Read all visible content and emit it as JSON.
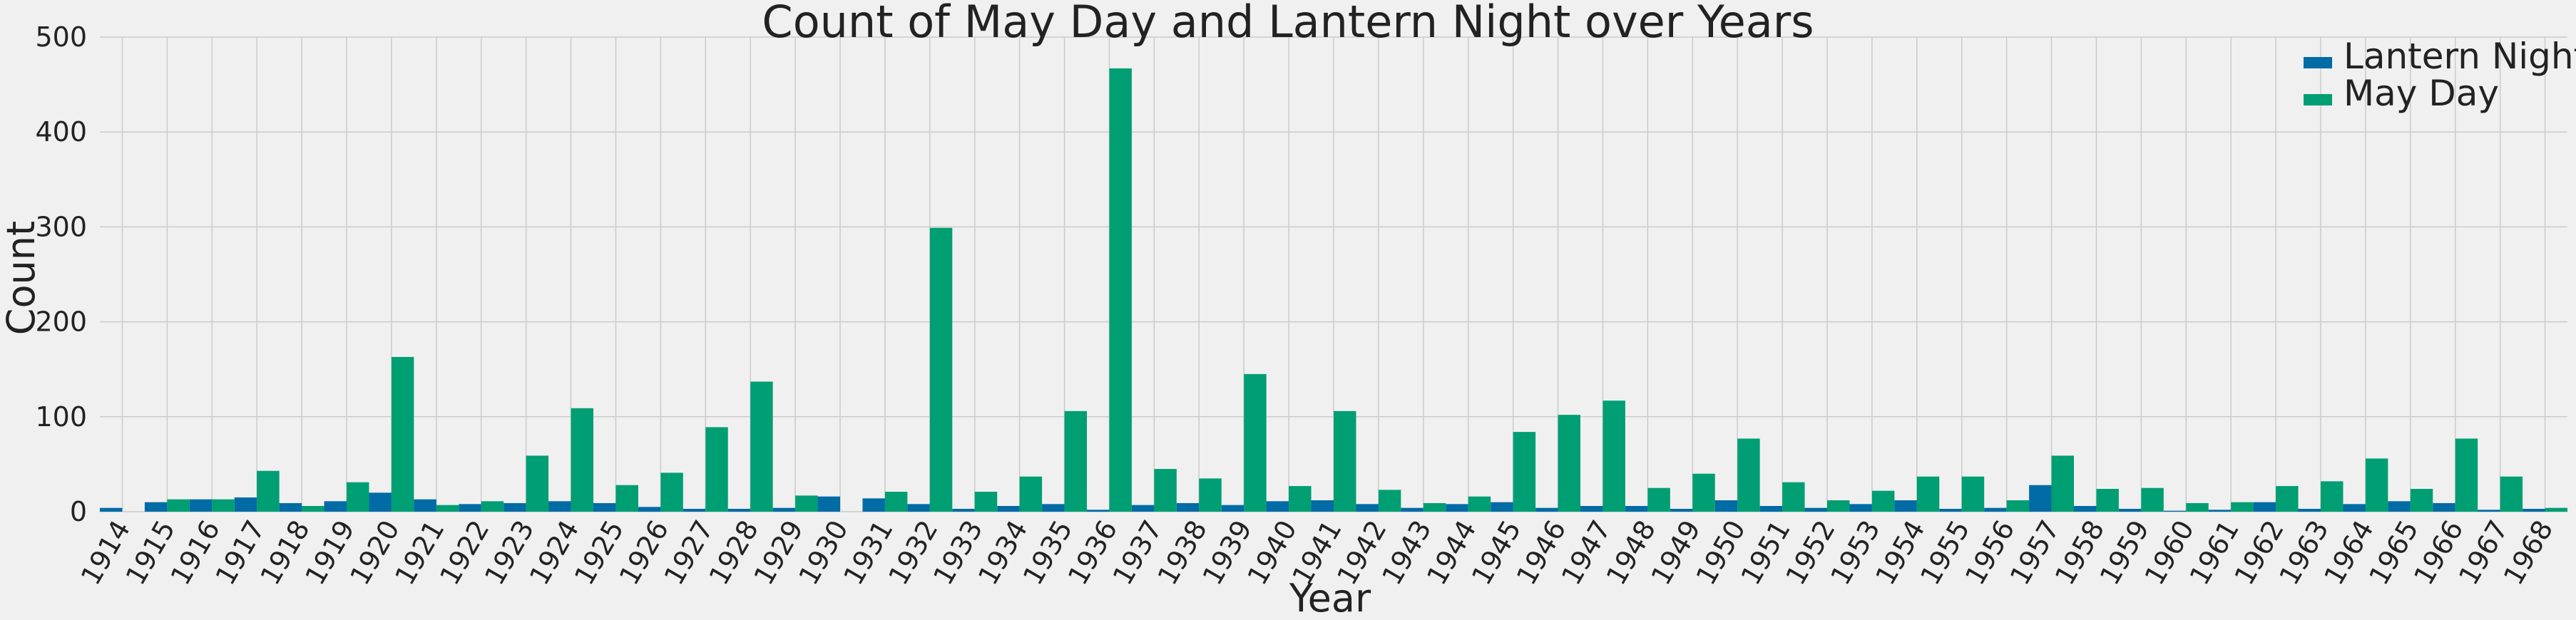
{
  "chart_data": {
    "type": "bar",
    "title": "Count of May Day and Lantern Night over Years",
    "xlabel": "Year",
    "ylabel": "Count",
    "ylim": [
      0,
      500
    ],
    "yticks": [
      0,
      100,
      200,
      300,
      400,
      500
    ],
    "grid": true,
    "legend_position": "top-right",
    "categories": [
      "1914",
      "1915",
      "1916",
      "1917",
      "1918",
      "1919",
      "1920",
      "1921",
      "1922",
      "1923",
      "1924",
      "1925",
      "1926",
      "1927",
      "1928",
      "1929",
      "1930",
      "1931",
      "1932",
      "1933",
      "1934",
      "1935",
      "1936",
      "1937",
      "1938",
      "1939",
      "1940",
      "1941",
      "1942",
      "1943",
      "1944",
      "1945",
      "1946",
      "1947",
      "1948",
      "1949",
      "1950",
      "1951",
      "1952",
      "1953",
      "1954",
      "1955",
      "1956",
      "1957",
      "1958",
      "1959",
      "1960",
      "1961",
      "1962",
      "1963",
      "1964",
      "1965",
      "1966",
      "1967",
      "1968"
    ],
    "series": [
      {
        "name": "Lantern Night",
        "color": "#006ba4",
        "values": [
          4,
          10,
          13,
          15,
          9,
          11,
          20,
          13,
          8,
          9,
          11,
          9,
          5,
          3,
          3,
          4,
          16,
          14,
          8,
          3,
          6,
          8,
          2,
          7,
          9,
          7,
          11,
          12,
          8,
          4,
          8,
          10,
          4,
          6,
          6,
          3,
          12,
          6,
          4,
          8,
          12,
          3,
          4,
          28,
          6,
          3,
          1,
          2,
          10,
          3,
          8,
          11,
          9,
          2,
          3
        ]
      },
      {
        "name": "May Day",
        "color": "#009e73",
        "values": [
          0,
          13,
          13,
          43,
          6,
          31,
          163,
          7,
          11,
          59,
          109,
          28,
          41,
          89,
          137,
          17,
          0,
          21,
          299,
          21,
          37,
          106,
          467,
          45,
          35,
          145,
          27,
          106,
          23,
          9,
          16,
          84,
          102,
          117,
          25,
          40,
          77,
          31,
          12,
          22,
          37,
          37,
          12,
          59,
          24,
          25,
          9,
          10,
          27,
          32,
          56,
          24,
          77,
          37,
          4
        ]
      }
    ]
  }
}
